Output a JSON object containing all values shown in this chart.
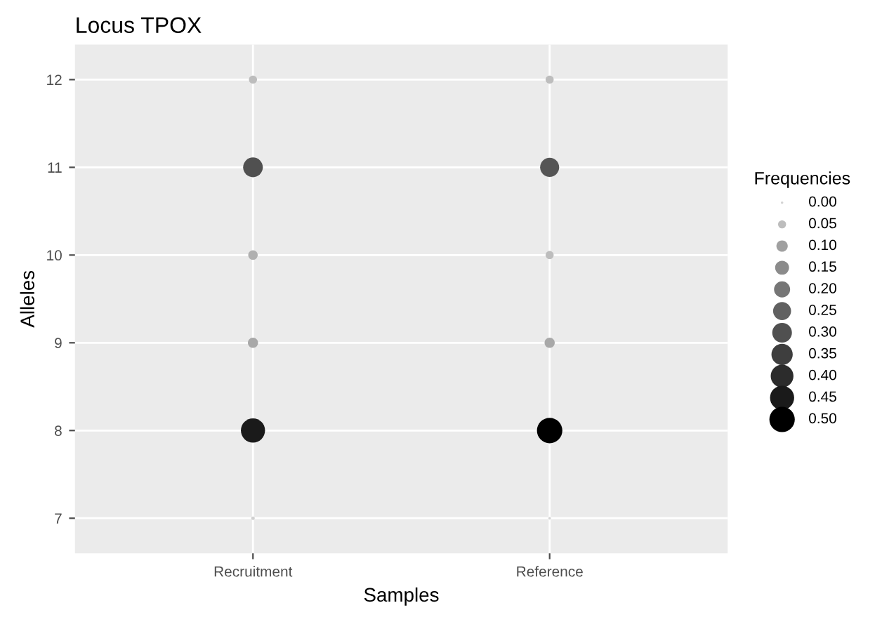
{
  "chart_data": {
    "type": "bubble",
    "title": "Locus TPOX",
    "xlabel": "Samples",
    "ylabel": "Alleles",
    "legend_title": "Frequencies",
    "categories": [
      "Recruitment",
      "Reference"
    ],
    "series": [
      {
        "x": [
          "Recruitment",
          "Recruitment",
          "Recruitment",
          "Recruitment",
          "Recruitment",
          "Recruitment",
          "Reference",
          "Reference",
          "Reference",
          "Reference",
          "Reference",
          "Reference"
        ],
        "values": [
          12,
          11,
          10,
          9,
          8,
          7,
          12,
          11,
          10,
          9,
          8,
          7
        ],
        "sizes": [
          0.05,
          0.3,
          0.07,
          0.08,
          0.45,
          0.01,
          0.05,
          0.28,
          0.05,
          0.08,
          0.5,
          0.005
        ],
        "colors": [
          "#bdbdbd",
          "#505050",
          "#b0b0b0",
          "#a8a8a8",
          "#1a1a1a",
          "#d0d0d0",
          "#bdbdbd",
          "#555555",
          "#bdbdbd",
          "#a8a8a8",
          "#000000",
          "#d3d3d3"
        ]
      }
    ],
    "size_legend": [
      {
        "value": 0.0,
        "label": "0.00"
      },
      0.05,
      {
        "value": 0.1,
        "label": "0.10"
      },
      0.15,
      {
        "value": 0.2,
        "label": "0.20"
      },
      0.25,
      {
        "value": 0.3,
        "label": "0.30"
      },
      0.35,
      {
        "value": 0.4,
        "label": "0.40"
      },
      0.45,
      {
        "value": 0.5,
        "label": "0.50"
      }
    ],
    "ylim": [
      6.6,
      12.4
    ],
    "yticks": [
      7,
      8,
      9,
      10,
      11,
      12
    ],
    "grid": true
  }
}
